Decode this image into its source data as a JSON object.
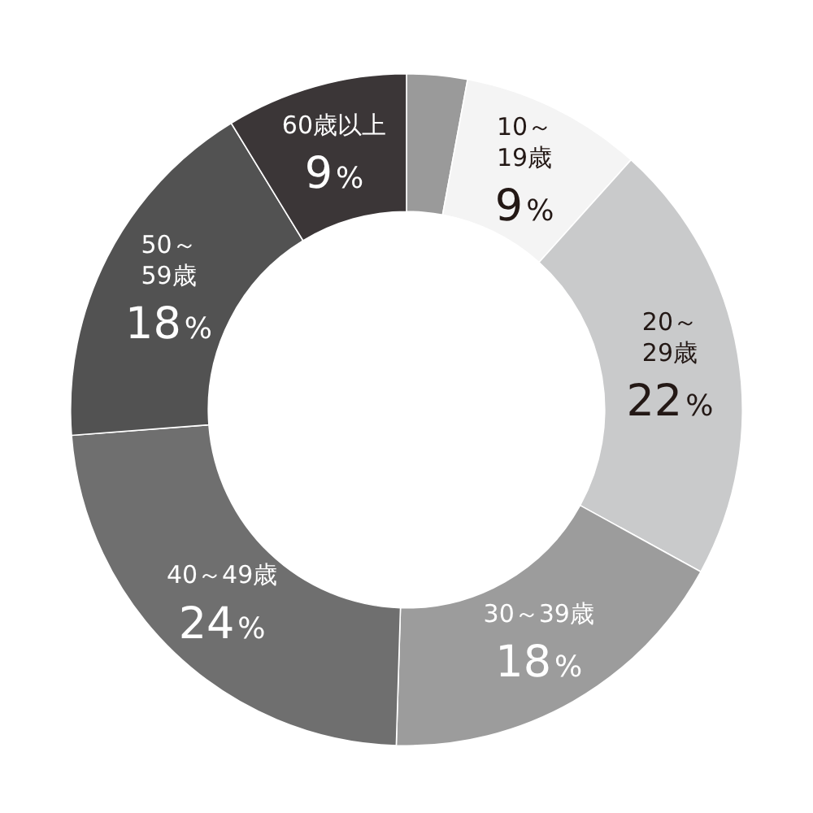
{
  "chart_data": {
    "type": "donut",
    "categories": [
      null,
      "10～\n19歳",
      "20～\n29歳",
      "30～39歳",
      "40～49歳",
      "50～\n59歳",
      "60歳以上"
    ],
    "values": [
      3,
      9,
      22,
      18,
      24,
      18,
      9
    ],
    "colors": [
      "#9a9a9a",
      "#f4f4f4",
      "#c9cacb",
      "#9c9c9c",
      "#6f6f6f",
      "#525252",
      "#3b3637"
    ],
    "value_labels": [
      null,
      "9%",
      "22%",
      "18%",
      "24%",
      "18%",
      "9%"
    ]
  }
}
